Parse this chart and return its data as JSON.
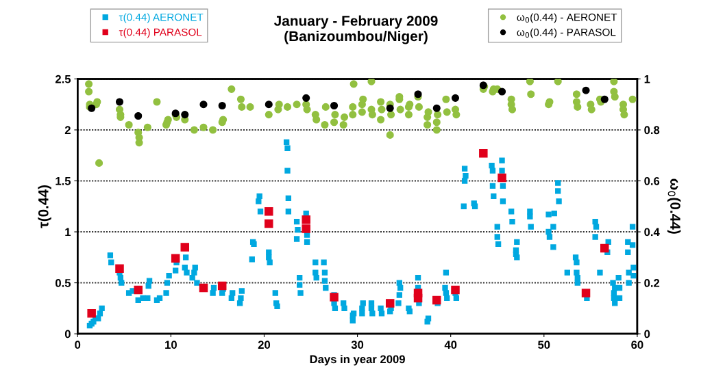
{
  "chart_data": {
    "type": "scatter",
    "title": "January - February 2009\n(Banizoumbou/Niger)",
    "xlabel": "Days in year 2009",
    "ylabel": "τ(0.44)",
    "y2label": "ω$_{0}$(0.44)",
    "xlim": [
      0,
      60
    ],
    "xticks": [
      0,
      10,
      20,
      30,
      40,
      50,
      60
    ],
    "ylim": [
      0,
      2.5
    ],
    "yticks": [
      0,
      0.5,
      1,
      1.5,
      2,
      2.5
    ],
    "y2lim": [
      0,
      1
    ],
    "y2ticks": [
      0,
      0.2,
      0.4,
      0.6,
      0.8,
      1
    ],
    "grid": "y",
    "legend": "top",
    "series": [
      {
        "name": "τ(0.44) AERONET",
        "color": "#00a8e0",
        "marker": "square",
        "axis": "y",
        "x": [
          1.3,
          1.5,
          1.7,
          1.9,
          2.2,
          2.4,
          2.6,
          3.5,
          3.6,
          4.5,
          4.6,
          4.7,
          5.5,
          5.9,
          6.5,
          7.0,
          7.5,
          7.6,
          7.7,
          8.5,
          8.8,
          9.5,
          9.6,
          9.8,
          10.5,
          10.6,
          11.5,
          11.6,
          11.7,
          12.3,
          12.5,
          12.6,
          12.8,
          14.5,
          14.6,
          15.5,
          15.6,
          16.5,
          16.6,
          17.4,
          17.5,
          17.6,
          18.7,
          18.8,
          18.9,
          19.4,
          19.5,
          19.6,
          20.5,
          20.5,
          20.6,
          21.2,
          21.3,
          21.4,
          22.4,
          22.5,
          22.5,
          22.6,
          22.6,
          23.5,
          23.5,
          23.6,
          23.8,
          23.8,
          23.9,
          24.5,
          24.6,
          24.6,
          25.5,
          25.5,
          25.6,
          26.4,
          26.5,
          26.5,
          26.6,
          27.5,
          27.5,
          27.6,
          28.5,
          28.6,
          29.5,
          29.5,
          29.6,
          30.5,
          30.5,
          30.6,
          31.5,
          31.5,
          31.6,
          32.5,
          32.6,
          33.5,
          33.6,
          34.4,
          34.5,
          34.5,
          34.6,
          35.5,
          35.6,
          36.5,
          36.5,
          36.6,
          37.5,
          37.6,
          38.6,
          39.4,
          39.5,
          39.5,
          39.6,
          40.5,
          40.6,
          41.4,
          41.5,
          41.5,
          41.6,
          42.5,
          42.6,
          44.4,
          44.5,
          44.5,
          44.6,
          45.0,
          45.0,
          45.1,
          45.5,
          45.5,
          45.6,
          45.6,
          46.5,
          46.6,
          47.0,
          47.0,
          47.1,
          47.1,
          48.5,
          48.5,
          48.6,
          50.5,
          50.5,
          50.6,
          51.0,
          51.0,
          51.1,
          51.5,
          51.5,
          51.6,
          52.5,
          53.4,
          53.5,
          53.5,
          53.6,
          53.6,
          54.6,
          55.5,
          55.5,
          55.6,
          56.0,
          56.8,
          56.9,
          57.4,
          57.5,
          57.5,
          57.6,
          57.6,
          58.0,
          58.1,
          58.1,
          59.0,
          59.0,
          59.1,
          59.1,
          59.5,
          59.5,
          59.6,
          59.6
        ],
        "values": [
          0.08,
          0.1,
          0.12,
          0.15,
          0.15,
          0.2,
          0.25,
          0.77,
          0.7,
          0.6,
          0.55,
          0.5,
          0.4,
          0.42,
          0.33,
          0.35,
          0.35,
          0.47,
          0.52,
          0.33,
          0.35,
          0.4,
          0.5,
          0.57,
          0.62,
          0.7,
          0.65,
          0.75,
          0.6,
          0.55,
          0.6,
          0.65,
          0.5,
          0.4,
          0.45,
          0.4,
          0.44,
          0.35,
          0.4,
          0.3,
          0.35,
          0.42,
          0.73,
          0.9,
          0.88,
          1.3,
          1.35,
          1.2,
          0.8,
          0.75,
          0.7,
          0.4,
          0.3,
          0.27,
          1.88,
          1.82,
          1.6,
          1.33,
          1.2,
          1.1,
          0.93,
          1.02,
          0.55,
          0.48,
          0.4,
          1.18,
          0.97,
          0.9,
          0.7,
          0.6,
          0.55,
          0.7,
          0.6,
          0.52,
          0.45,
          0.38,
          0.3,
          0.25,
          0.3,
          0.25,
          0.18,
          0.13,
          0.2,
          0.2,
          0.25,
          0.3,
          0.3,
          0.25,
          0.2,
          0.25,
          0.2,
          0.22,
          0.25,
          0.3,
          0.38,
          0.5,
          0.45,
          0.25,
          0.22,
          0.55,
          0.45,
          0.3,
          0.12,
          0.15,
          0.3,
          0.45,
          0.4,
          0.6,
          0.35,
          0.4,
          0.35,
          1.25,
          1.5,
          1.62,
          1.55,
          1.28,
          1.25,
          1.65,
          1.6,
          1.45,
          1.35,
          1.05,
          0.95,
          0.88,
          1.7,
          1.6,
          1.45,
          1.3,
          1.2,
          1.1,
          0.82,
          0.78,
          0.75,
          0.9,
          1.2,
          1.15,
          1.05,
          1.17,
          1.0,
          0.95,
          1.05,
          0.85,
          1.18,
          1.48,
          1.4,
          1.3,
          0.6,
          0.75,
          0.7,
          0.6,
          0.5,
          0.55,
          0.35,
          0.95,
          1.1,
          1.05,
          0.6,
          0.8,
          0.9,
          0.5,
          0.4,
          0.35,
          0.45,
          0.3,
          0.55,
          0.45,
          0.35,
          0.9,
          0.8,
          0.6,
          0.5,
          1.05,
          0.87,
          0.65,
          0.57
        ]
      },
      {
        "name": "τ(0.44) PARASOL",
        "color": "#e0001b",
        "marker": "square",
        "axis": "y",
        "x": [
          1.5,
          4.5,
          6.5,
          10.5,
          11.5,
          13.5,
          15.5,
          20.5,
          20.5,
          24.5,
          24.5,
          27.5,
          33.5,
          36.5,
          36.5,
          38.5,
          40.5,
          43.5,
          45.5,
          54.5,
          56.5
        ],
        "values": [
          0.2,
          0.64,
          0.43,
          0.74,
          0.85,
          0.45,
          0.47,
          1.2,
          1.08,
          1.12,
          1.03,
          0.36,
          0.3,
          0.4,
          0.35,
          0.33,
          0.43,
          1.77,
          1.53,
          0.4,
          0.84
        ]
      },
      {
        "name": "ω$_{0}$(0.44) - AERONET",
        "color": "#92c040",
        "marker": "circle",
        "axis": "y2",
        "x": [
          1.2,
          1.2,
          1.3,
          1.3,
          2.0,
          2.1,
          2.3,
          4.5,
          4.6,
          4.6,
          5.5,
          6.5,
          6.6,
          6.6,
          7.5,
          8.5,
          9.5,
          9.6,
          9.7,
          10.5,
          10.6,
          11.5,
          12.5,
          13.5,
          14.5,
          15.5,
          15.6,
          16.5,
          17.5,
          17.6,
          18.5,
          20.5,
          21.5,
          21.6,
          22.5,
          23.5,
          24.5,
          24.6,
          25.5,
          25.6,
          26.5,
          26.6,
          27.5,
          27.6,
          28.5,
          28.6,
          29.5,
          29.5,
          29.6,
          30.5,
          30.5,
          30.6,
          31.5,
          31.5,
          31.6,
          32.5,
          32.5,
          32.6,
          33.5,
          33.5,
          33.6,
          34.5,
          34.5,
          34.6,
          35.5,
          35.5,
          35.6,
          36.5,
          36.6,
          37.5,
          37.5,
          37.6,
          38.5,
          38.5,
          38.6,
          39.5,
          39.6,
          40.5,
          40.6,
          43.5,
          43.6,
          44.5,
          44.6,
          45.0,
          46.5,
          46.5,
          46.6,
          48.5,
          48.6,
          50.5,
          50.6,
          51.5,
          53.5,
          53.5,
          53.6,
          55.0,
          55.1,
          56.0,
          56.1,
          57.5,
          57.5,
          57.6,
          58.5,
          58.5,
          58.6,
          59.5
        ],
        "values": [
          0.98,
          0.95,
          0.9,
          0.89,
          0.9,
          0.91,
          0.67,
          0.88,
          0.86,
          0.85,
          0.82,
          0.79,
          0.77,
          0.75,
          0.81,
          0.91,
          0.82,
          0.83,
          0.84,
          0.86,
          0.85,
          0.84,
          0.8,
          0.81,
          0.8,
          0.83,
          0.84,
          0.96,
          0.92,
          0.89,
          0.89,
          0.86,
          0.88,
          0.9,
          0.89,
          0.9,
          0.9,
          0.88,
          0.86,
          0.84,
          0.82,
          0.89,
          0.83,
          0.86,
          0.82,
          0.85,
          0.86,
          0.89,
          0.98,
          0.9,
          0.87,
          0.92,
          0.99,
          0.88,
          0.86,
          0.84,
          0.91,
          0.88,
          0.78,
          0.9,
          0.86,
          0.92,
          0.93,
          0.88,
          0.86,
          0.89,
          0.9,
          0.93,
          0.89,
          0.82,
          0.85,
          0.87,
          0.8,
          0.83,
          0.86,
          0.92,
          0.87,
          0.88,
          0.86,
          0.96,
          0.97,
          0.95,
          0.96,
          0.96,
          0.92,
          0.9,
          0.88,
          0.99,
          0.94,
          0.9,
          0.91,
          0.99,
          0.94,
          0.91,
          0.89,
          0.9,
          0.88,
          0.92,
          0.91,
          0.99,
          0.95,
          0.93,
          0.9,
          0.88,
          0.86,
          0.92
        ]
      },
      {
        "name": "ω$_{0}$(0.44) - PARASOL",
        "color": "#000000",
        "marker": "circle",
        "axis": "y2",
        "x": [
          1.5,
          4.5,
          6.5,
          10.5,
          11.5,
          13.5,
          15.5,
          20.5,
          24.5,
          27.5,
          33.5,
          36.5,
          38.5,
          40.5,
          43.5,
          45.5,
          54.5,
          56.5
        ],
        "values": [
          0.885,
          0.91,
          0.855,
          0.865,
          0.86,
          0.9,
          0.895,
          0.9,
          0.925,
          0.895,
          0.885,
          0.94,
          0.885,
          0.925,
          0.975,
          0.95,
          0.955,
          0.92
        ]
      }
    ]
  }
}
